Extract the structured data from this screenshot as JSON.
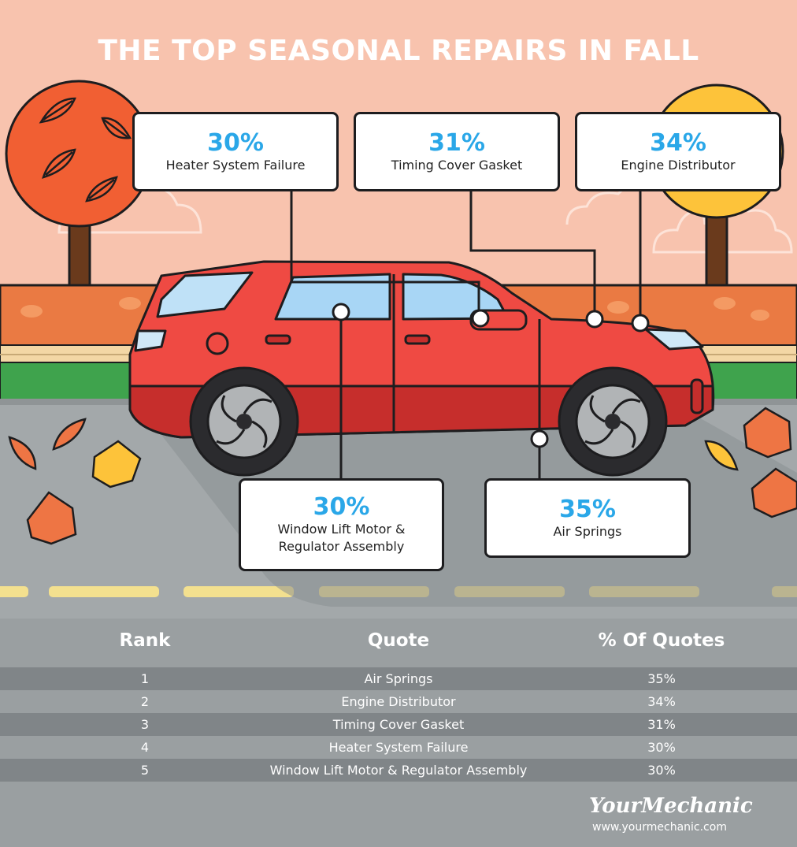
{
  "title": "THE TOP SEASONAL REPAIRS IN FALL",
  "callouts": [
    {
      "pct": "30%",
      "label": "Heater System Failure"
    },
    {
      "pct": "31%",
      "label": "Timing Cover Gasket"
    },
    {
      "pct": "34%",
      "label": "Engine Distributor"
    },
    {
      "pct": "30%",
      "label_line1": "Window Lift Motor &",
      "label_line2": "Regulator Assembly"
    },
    {
      "pct": "35%",
      "label": "Air Springs"
    }
  ],
  "table": {
    "headers": [
      "Rank",
      "Quote",
      "% Of Quotes"
    ],
    "rows": [
      [
        "1",
        "Air Springs",
        "35%"
      ],
      [
        "2",
        "Engine Distributor",
        "34%"
      ],
      [
        "3",
        "Timing Cover Gasket",
        "31%"
      ],
      [
        "4",
        "Heater System Failure",
        "30%"
      ],
      [
        "5",
        "Window Lift Motor & Regulator Assembly",
        "30%"
      ]
    ]
  },
  "brand": {
    "name": "YourMechanic",
    "url": "www.yourmechanic.com"
  },
  "colors": {
    "sky": "#f8c3ae",
    "road": "#a3a8aa",
    "car": "#ef4a43",
    "percent": "#2aa7e8",
    "table_bg": "#9a9fa1"
  }
}
